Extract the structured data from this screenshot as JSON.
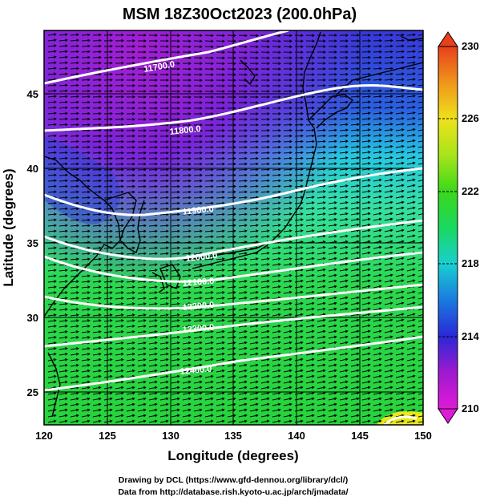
{
  "title": "MSM 18Z30Oct2023 (200.0hPa)",
  "x_axis": {
    "label": "Longitude (degrees)",
    "ticks": [
      "120",
      "125",
      "130",
      "135",
      "140",
      "145",
      "150"
    ]
  },
  "y_axis": {
    "label": "Latitude  (degrees)",
    "ticks": [
      "25",
      "30",
      "35",
      "40",
      "45"
    ]
  },
  "colorbar": {
    "ticks": [
      "210",
      "214",
      "218",
      "222",
      "226",
      "230"
    ],
    "colors": [
      "#d81ad8",
      "#9b19d0",
      "#2a2bd6",
      "#1a9ee0",
      "#18d9b8",
      "#22d62a",
      "#9be21a",
      "#e8e81a",
      "#f0a818",
      "#e84818"
    ]
  },
  "credits": {
    "line1": "Drawing by DCL (https://www.gfd-dennou.org/library/dcl/)",
    "line2": "Data from http://database.rish.kyoto-u.ac.jp/arch/jmadata/"
  },
  "contour_labels": [
    "11700.0",
    "11800.0",
    "11900.0",
    "12000.0",
    "12100.0",
    "12200.0",
    "12300.0",
    "12400.0"
  ],
  "chart_data": {
    "type": "contour-map",
    "title": "MSM 18Z30Oct2023 (200.0hPa)",
    "xlabel": "Longitude (degrees)",
    "ylabel": "Latitude  (degrees)",
    "xlim": [
      120,
      150
    ],
    "ylim": [
      22.4,
      47.6
    ],
    "fill_range": [
      210,
      230
    ],
    "contours": [
      {
        "level": 11700.0,
        "label": "11700.0"
      },
      {
        "level": 11800.0,
        "label": "11800.0"
      },
      {
        "level": 11900.0,
        "label": "11900.0"
      },
      {
        "level": 12000.0,
        "label": "12000.0"
      },
      {
        "level": 12100.0,
        "label": "12100.0"
      },
      {
        "level": 12200.0,
        "label": "12200.0"
      },
      {
        "level": 12300.0,
        "label": "12300.0"
      },
      {
        "level": 12400.0,
        "label": "12400.0"
      }
    ]
  }
}
